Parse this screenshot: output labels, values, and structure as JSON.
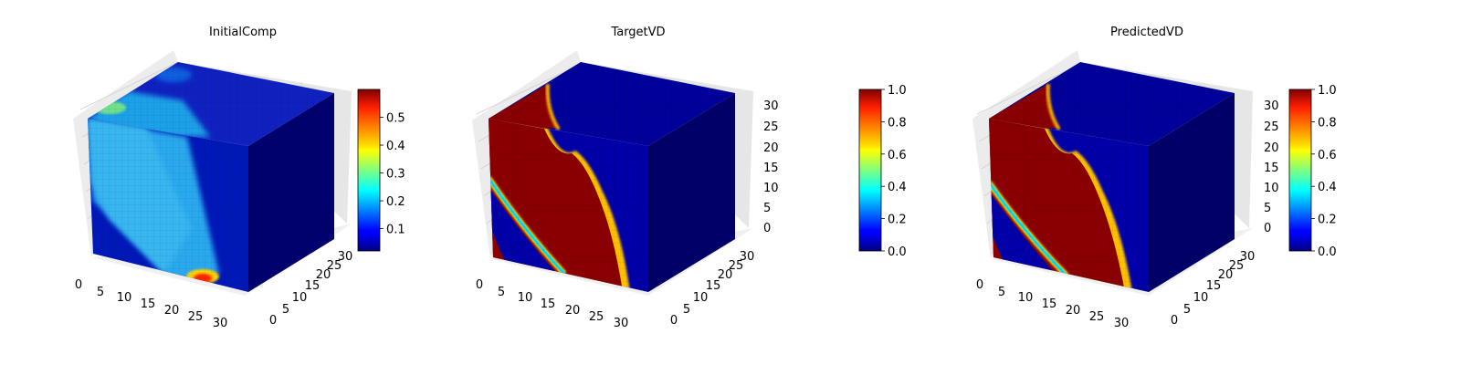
{
  "chart_data": [
    {
      "type": "voxel-3d",
      "title": "InitialComp",
      "axis_ticks": {
        "x": [
          "0",
          "5",
          "10",
          "15",
          "20",
          "25",
          "30"
        ],
        "y": [
          "0",
          "5",
          "10",
          "15",
          "20",
          "25",
          "30"
        ],
        "z": []
      },
      "colormap": "jet",
      "colorbar": {
        "min": 0.02,
        "max": 0.6,
        "ticks": [
          "0.1",
          "0.2",
          "0.3",
          "0.4",
          "0.5"
        ],
        "tick_values": [
          0.1,
          0.2,
          0.3,
          0.4,
          0.5
        ]
      },
      "grid": true
    },
    {
      "type": "voxel-3d",
      "title": "TargetVD",
      "axis_ticks": {
        "x": [
          "0",
          "5",
          "10",
          "15",
          "20",
          "25",
          "30"
        ],
        "y": [
          "0",
          "5",
          "10",
          "15",
          "20",
          "25",
          "30"
        ],
        "z": [
          "0",
          "5",
          "10",
          "15",
          "20",
          "25",
          "30"
        ]
      },
      "colormap": "jet",
      "colorbar": {
        "min": 0.0,
        "max": 1.0,
        "ticks": [
          "0.0",
          "0.2",
          "0.4",
          "0.6",
          "0.8",
          "1.0"
        ],
        "tick_values": [
          0,
          0.2,
          0.4,
          0.6,
          0.8,
          1.0
        ]
      },
      "grid": true
    },
    {
      "type": "voxel-3d",
      "title": "PredictedVD",
      "axis_ticks": {
        "x": [
          "0",
          "5",
          "10",
          "15",
          "20",
          "25",
          "30"
        ],
        "y": [
          "0",
          "5",
          "10",
          "15",
          "20",
          "25",
          "30"
        ],
        "z": [
          "0",
          "5",
          "10",
          "15",
          "20",
          "25",
          "30"
        ]
      },
      "colormap": "jet",
      "colorbar": {
        "min": 0.0,
        "max": 1.0,
        "ticks": [
          "0.0",
          "0.2",
          "0.4",
          "0.6",
          "0.8",
          "1.0"
        ],
        "tick_values": [
          0,
          0.2,
          0.4,
          0.6,
          0.8,
          1.0
        ]
      },
      "grid": true
    }
  ]
}
